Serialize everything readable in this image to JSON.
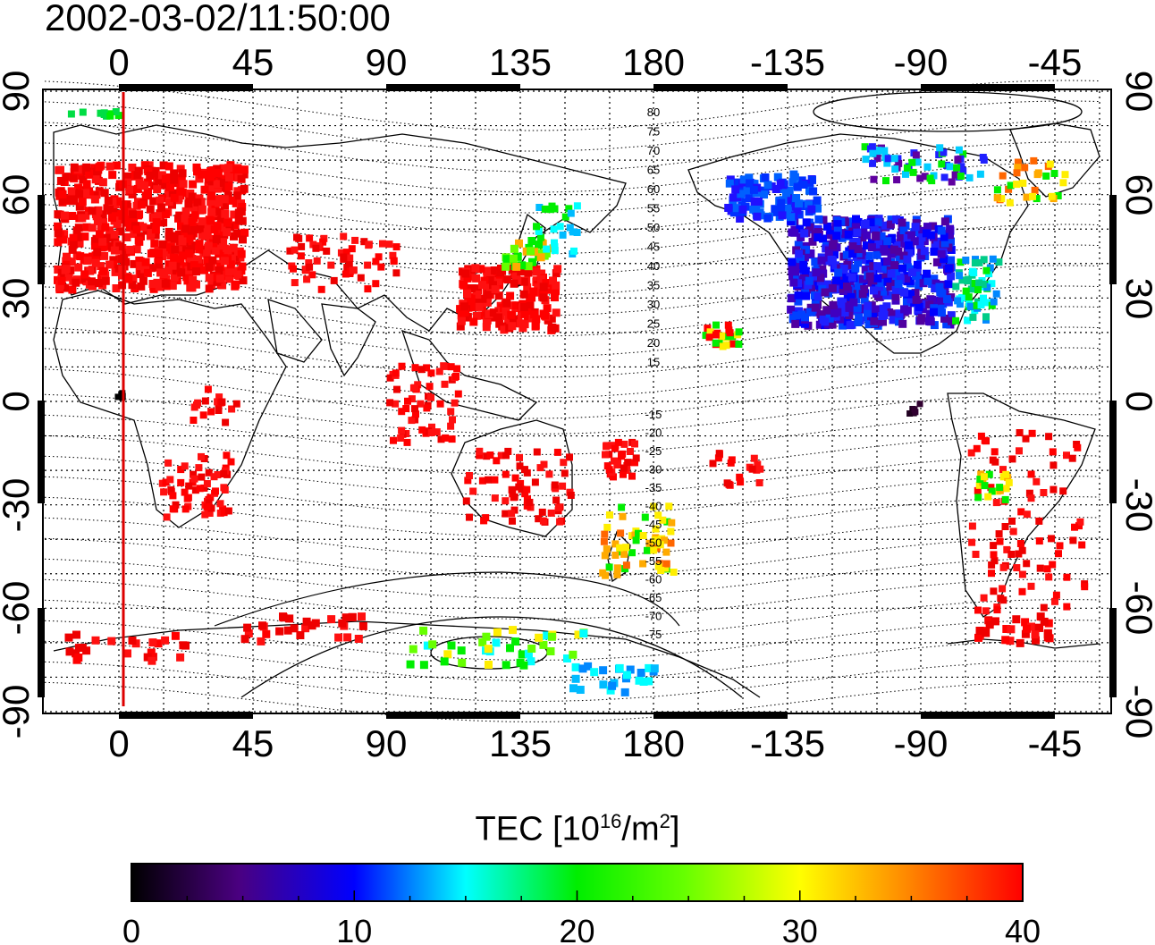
{
  "timestamp": "2002-03-02/11:50:00",
  "top_lon_labels": [
    "0",
    "45",
    "90",
    "135",
    "180",
    "-135",
    "-90",
    "-45"
  ],
  "bottom_lon_labels": [
    "0",
    "45",
    "90",
    "135",
    "180",
    "-135",
    "-90",
    "-45"
  ],
  "left_lat_labels": [
    "90",
    "60",
    "30",
    "0",
    "-30",
    "-60",
    "-90"
  ],
  "right_lat_labels": [
    "90",
    "60",
    "30",
    "0",
    "-30",
    "-60",
    "-90"
  ],
  "north_contour_labels": [
    "80",
    "75",
    "70",
    "65",
    "60",
    "55",
    "50",
    "45",
    "40",
    "35",
    "30",
    "25",
    "20",
    "15"
  ],
  "south_contour_labels": [
    "-15",
    "-20",
    "-25",
    "-30",
    "-35",
    "-40",
    "-45",
    "-50",
    "-55",
    "-60",
    "-65",
    "-70",
    "-75"
  ],
  "colorbar": {
    "title_main": "TEC  [10",
    "title_exp": "16",
    "title_unit": "/m",
    "title_exp2": "2",
    "title_close": "]",
    "ticks": [
      "0",
      "10",
      "20",
      "30",
      "40"
    ],
    "range": [
      0,
      40
    ],
    "colors": [
      "#000000",
      "#5a0080",
      "#0000ff",
      "#00ffff",
      "#00ff00",
      "#ffff00",
      "#ff8800",
      "#ff0000"
    ]
  },
  "colors": {
    "high_tec": "#ff0000",
    "meridian_line": "#dd0000"
  }
}
